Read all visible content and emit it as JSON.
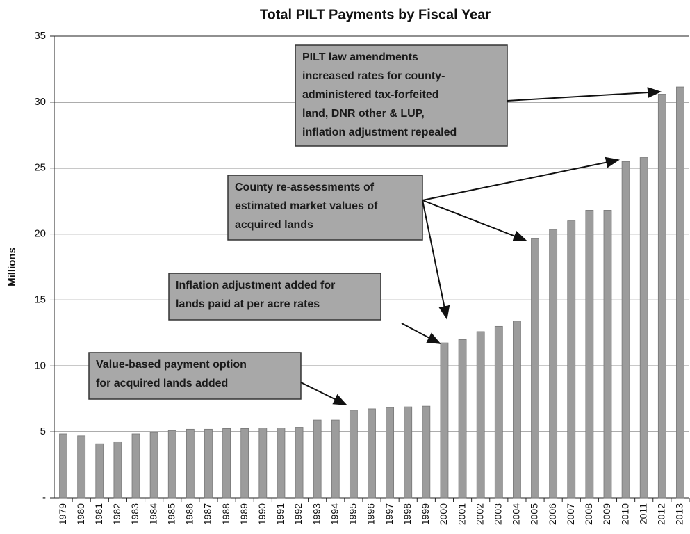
{
  "chart_data": {
    "type": "bar",
    "title": "Total PILT Payments by Fiscal Year",
    "y_label": "Millions",
    "categories": [
      "1979",
      "1980",
      "1981",
      "1982",
      "1983",
      "1984",
      "1985",
      "1986",
      "1987",
      "1988",
      "1989",
      "1990",
      "1991",
      "1992",
      "1993",
      "1994",
      "1995",
      "1996",
      "1997",
      "1998",
      "1999",
      "2000",
      "2001",
      "2002",
      "2003",
      "2004",
      "2005",
      "2006",
      "2007",
      "2008",
      "2009",
      "2010",
      "2011",
      "2012",
      "2013"
    ],
    "values": [
      4.85,
      4.7,
      4.1,
      4.25,
      4.85,
      4.95,
      5.1,
      5.2,
      5.2,
      5.25,
      5.25,
      5.3,
      5.3,
      5.35,
      5.9,
      5.9,
      6.65,
      6.75,
      6.85,
      6.9,
      6.95,
      11.75,
      12.0,
      12.6,
      13.0,
      13.4,
      19.65,
      20.35,
      21.0,
      21.8,
      21.8,
      25.5,
      25.8,
      30.6,
      31.15
    ],
    "color": "#9c9c9c",
    "ylim": [
      0,
      35
    ],
    "yticks": [
      {
        "value": 0,
        "label": "-"
      },
      5,
      10,
      15,
      20,
      25,
      30,
      35
    ],
    "grid": true,
    "annotations": [
      {
        "lines": [
          "PILT law amendments",
          "increased rates for county-",
          "administered tax-forfeited",
          "land, DNR other & LUP,",
          "inflation adjustment repealed"
        ]
      },
      {
        "lines": [
          "County re-assessments of",
          "estimated market values of",
          "acquired lands"
        ]
      },
      {
        "lines": [
          "Inflation adjustment added for",
          "lands paid at per acre rates"
        ]
      },
      {
        "lines": [
          "Value-based payment option",
          "for acquired lands added"
        ]
      }
    ]
  }
}
